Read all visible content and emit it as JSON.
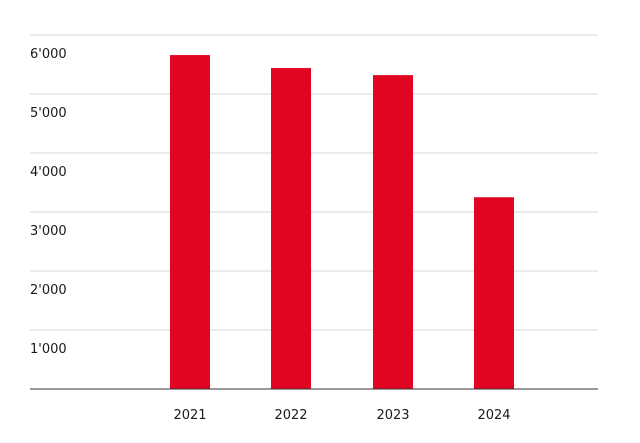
{
  "chart_data": {
    "type": "bar",
    "categories": [
      "2021",
      "2022",
      "2023",
      "2024"
    ],
    "values": [
      5660,
      5440,
      5320,
      3250
    ],
    "ylim": [
      0,
      6000
    ],
    "yticks": [
      0,
      1000,
      2000,
      3000,
      4000,
      5000,
      6000
    ],
    "ytick_labels": [
      "",
      "1'000",
      "2'000",
      "3'000",
      "4'000",
      "5'000",
      "6'000"
    ],
    "grid": true,
    "legend": "none",
    "colors": {
      "bar": "#e10522",
      "grid": "#d9d9d9",
      "axis": "#333333",
      "text": "#1a1a1a"
    }
  }
}
